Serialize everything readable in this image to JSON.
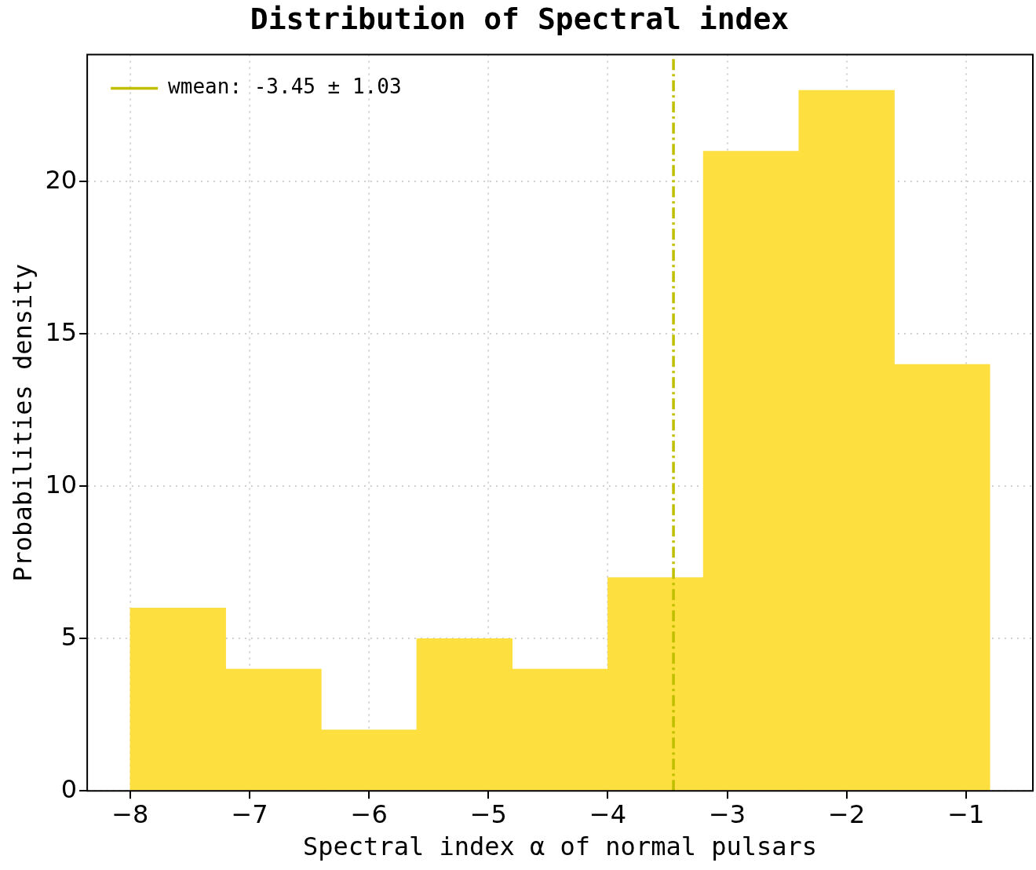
{
  "chart_data": {
    "type": "histogram",
    "title": "Distribution of Spectral index",
    "xlabel": "Spectral index α of normal pulsars",
    "ylabel": "Probabilities density",
    "bins": [
      -8,
      -7.2,
      -6.4,
      -5.6,
      -4.8,
      -4.0,
      -3.2,
      -2.4,
      -1.6,
      -0.8
    ],
    "series": [
      {
        "color": "#fddf3f",
        "values": [
          6,
          4,
          2,
          5,
          4,
          7,
          21,
          23,
          14
        ]
      },
      {
        "type": "line",
        "name": "wmean: -3.45 ± 1.03",
        "x": [
          -3.45,
          -3.45
        ],
        "values": [
          0,
          24.17
        ],
        "color": "#bfbf00",
        "line_style": "dashdot",
        "marker": "none"
      }
    ],
    "xlim": [
      -8.36,
      -0.44
    ],
    "ylim": [
      0,
      24.17
    ],
    "xticks": [
      {
        "value": -8,
        "label": "−8"
      },
      {
        "value": -7,
        "label": "−7"
      },
      {
        "value": -6,
        "label": "−6"
      },
      {
        "value": -5,
        "label": "−5"
      },
      {
        "value": -4,
        "label": "−4"
      },
      {
        "value": -3,
        "label": "−3"
      },
      {
        "value": -2,
        "label": "−2"
      },
      {
        "value": -1,
        "label": "−1"
      }
    ],
    "yticks": [
      0,
      5,
      10,
      15,
      20
    ],
    "grid": true,
    "legend": "top left"
  }
}
